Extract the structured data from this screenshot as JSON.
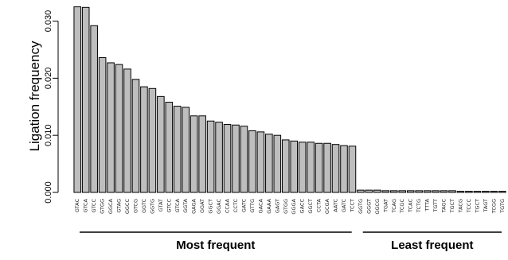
{
  "chart_data": {
    "type": "bar",
    "ylabel": "Ligation frequency",
    "ylim": [
      0,
      0.033
    ],
    "yticks": [
      "0.000",
      "0.010",
      "0.020",
      "0.030"
    ],
    "ytick_values": [
      0,
      0.01,
      0.02,
      0.03
    ],
    "bar_fill": "#bebebe",
    "bar_stroke": "#000000",
    "categories": [
      "GTAC",
      "GTCA",
      "GTCC",
      "GTGG",
      "GGCA",
      "GTAG",
      "GGCC",
      "GTCG",
      "GGTC",
      "GGTG",
      "GTAT",
      "GTCC",
      "GTCA",
      "GGTA",
      "GAGA",
      "GGAT",
      "GGCT",
      "GGAC",
      "CCAA",
      "CCTC",
      "GATC",
      "GTTG",
      "GACA",
      "GAAA",
      "GAGT",
      "GTGG",
      "GGGA",
      "GACC",
      "GGCT",
      "CCTA",
      "GCGA",
      "AATC",
      "GATC",
      "TCCT",
      "GGTG",
      "GGGT",
      "GGCG",
      "TGAT",
      "TCAG",
      "TCGC",
      "TCAC",
      "TCTG",
      "TTTA",
      "TGTT",
      "TAGC",
      "TGCT",
      "TACG",
      "TCCC",
      "TGCT",
      "TAGT",
      "TCGG",
      "TGTG"
    ],
    "values": [
      0.0325,
      0.0324,
      0.0292,
      0.0236,
      0.0227,
      0.0224,
      0.0216,
      0.0198,
      0.0185,
      0.0182,
      0.0168,
      0.0158,
      0.0151,
      0.0149,
      0.0134,
      0.0134,
      0.0125,
      0.0123,
      0.0119,
      0.0118,
      0.0116,
      0.0108,
      0.0106,
      0.0102,
      0.01,
      0.0092,
      0.009,
      0.0088,
      0.0088,
      0.0086,
      0.0086,
      0.0084,
      0.0082,
      0.0081,
      0.0004,
      0.0004,
      0.0004,
      0.0003,
      0.0003,
      0.0003,
      0.0003,
      0.0003,
      0.0003,
      0.0003,
      0.0003,
      0.0003,
      0.0002,
      0.0002,
      0.0002,
      0.0002,
      0.0002,
      0.0002
    ],
    "groups": [
      {
        "label": "Most frequent",
        "from": 0,
        "to": 33
      },
      {
        "label": "Least frequent",
        "from": 34,
        "to": 51
      }
    ]
  }
}
